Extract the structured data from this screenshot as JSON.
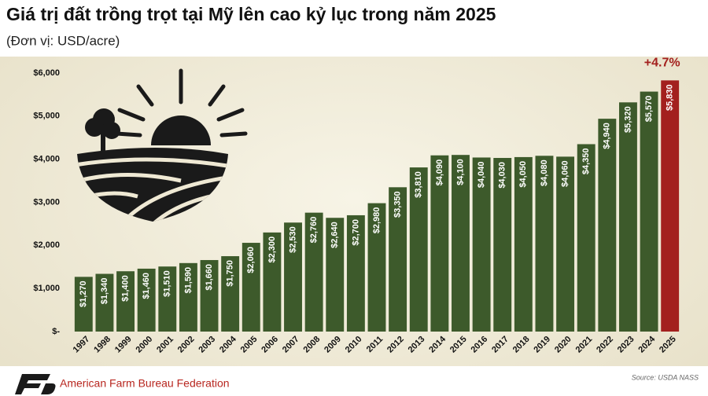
{
  "chart_data": {
    "type": "bar",
    "title": "Giá trị đất trồng trọt tại Mỹ lên cao kỷ lục trong năm 2025",
    "subtitle": "(Đơn vị: USD/acre)",
    "categories": [
      "1997",
      "1998",
      "1999",
      "2000",
      "2001",
      "2002",
      "2003",
      "2004",
      "2005",
      "2006",
      "2007",
      "2008",
      "2009",
      "2010",
      "2011",
      "2012",
      "2013",
      "2014",
      "2015",
      "2016",
      "2017",
      "2018",
      "2019",
      "2020",
      "2021",
      "2022",
      "2023",
      "2024",
      "2025"
    ],
    "values": [
      1270,
      1340,
      1400,
      1460,
      1510,
      1590,
      1660,
      1750,
      2060,
      2300,
      2530,
      2760,
      2640,
      2700,
      2980,
      3350,
      3810,
      4090,
      4100,
      4040,
      4030,
      4050,
      4080,
      4060,
      4350,
      4940,
      5320,
      5570,
      5830
    ],
    "value_labels": [
      "$1,270",
      "$1,340",
      "$1,400",
      "$1,460",
      "$1,510",
      "$1,590",
      "$1,660",
      "$1,750",
      "$2,060",
      "$2,300",
      "$2,530",
      "$2,760",
      "$2,640",
      "$2,700",
      "$2,980",
      "$3,350",
      "$3,810",
      "$4,090",
      "$4,100",
      "$4,040",
      "$4,030",
      "$4,050",
      "$4,080",
      "$4,060",
      "$4,350",
      "$4,940",
      "$5,320",
      "$5,570",
      "$5,830"
    ],
    "colors": [
      "#3d5a2b",
      "#3d5a2b",
      "#3d5a2b",
      "#3d5a2b",
      "#3d5a2b",
      "#3d5a2b",
      "#3d5a2b",
      "#3d5a2b",
      "#3d5a2b",
      "#3d5a2b",
      "#3d5a2b",
      "#3d5a2b",
      "#3d5a2b",
      "#3d5a2b",
      "#3d5a2b",
      "#3d5a2b",
      "#3d5a2b",
      "#3d5a2b",
      "#3d5a2b",
      "#3d5a2b",
      "#3d5a2b",
      "#3d5a2b",
      "#3d5a2b",
      "#3d5a2b",
      "#3d5a2b",
      "#3d5a2b",
      "#3d5a2b",
      "#3d5a2b",
      "#a3201e"
    ],
    "ylim": [
      0,
      6000
    ],
    "yticks": [
      {
        "value": 0,
        "label": "$-"
      },
      {
        "value": 1000,
        "label": "$1,000"
      },
      {
        "value": 2000,
        "label": "$2,000"
      },
      {
        "value": 3000,
        "label": "$3,000"
      },
      {
        "value": 4000,
        "label": "$4,000"
      },
      {
        "value": 5000,
        "label": "$5,000"
      },
      {
        "value": 6000,
        "label": "$6,000"
      }
    ],
    "grid": false,
    "annotation": "+4.7%",
    "annotation_color": "#a3201e",
    "source": "Source: USDA NASS",
    "publisher": "American Farm Bureau Federation"
  }
}
